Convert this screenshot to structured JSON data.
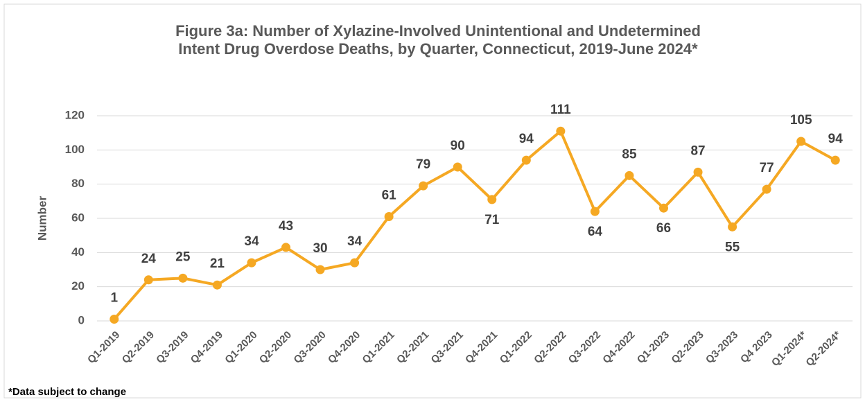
{
  "chart_data": {
    "type": "line",
    "title": "Figure 3a: Number of Xylazine-Involved Unintentional and Undetermined Intent Drug Overdose Deaths, by Quarter, Connecticut, 2019-June 2024*",
    "y_label": "Number",
    "footnote": "*Data subject to change",
    "categories": [
      "Q1-2019",
      "Q2-2019",
      "Q3-2019",
      "Q4-2019",
      "Q1-2020",
      "Q2-2020",
      "Q3-2020",
      "Q4-2020",
      "Q1-2021",
      "Q2-2021",
      "Q3-2021",
      "Q4-2021",
      "Q1-2022",
      "Q2-2022",
      "Q3-2022",
      "Q4-2022",
      "Q1-2023",
      "Q2-2023",
      "Q3-2023",
      "Q4 2023",
      "Q1-2024*",
      "Q2-2024*"
    ],
    "values": [
      1,
      24,
      25,
      21,
      34,
      43,
      30,
      34,
      61,
      79,
      90,
      71,
      94,
      111,
      64,
      85,
      66,
      87,
      55,
      77,
      105,
      94
    ],
    "color": "#f5a823",
    "ylim": [
      0,
      120
    ],
    "yticks": [
      0,
      20,
      40,
      60,
      80,
      100,
      120
    ],
    "grid": true
  }
}
